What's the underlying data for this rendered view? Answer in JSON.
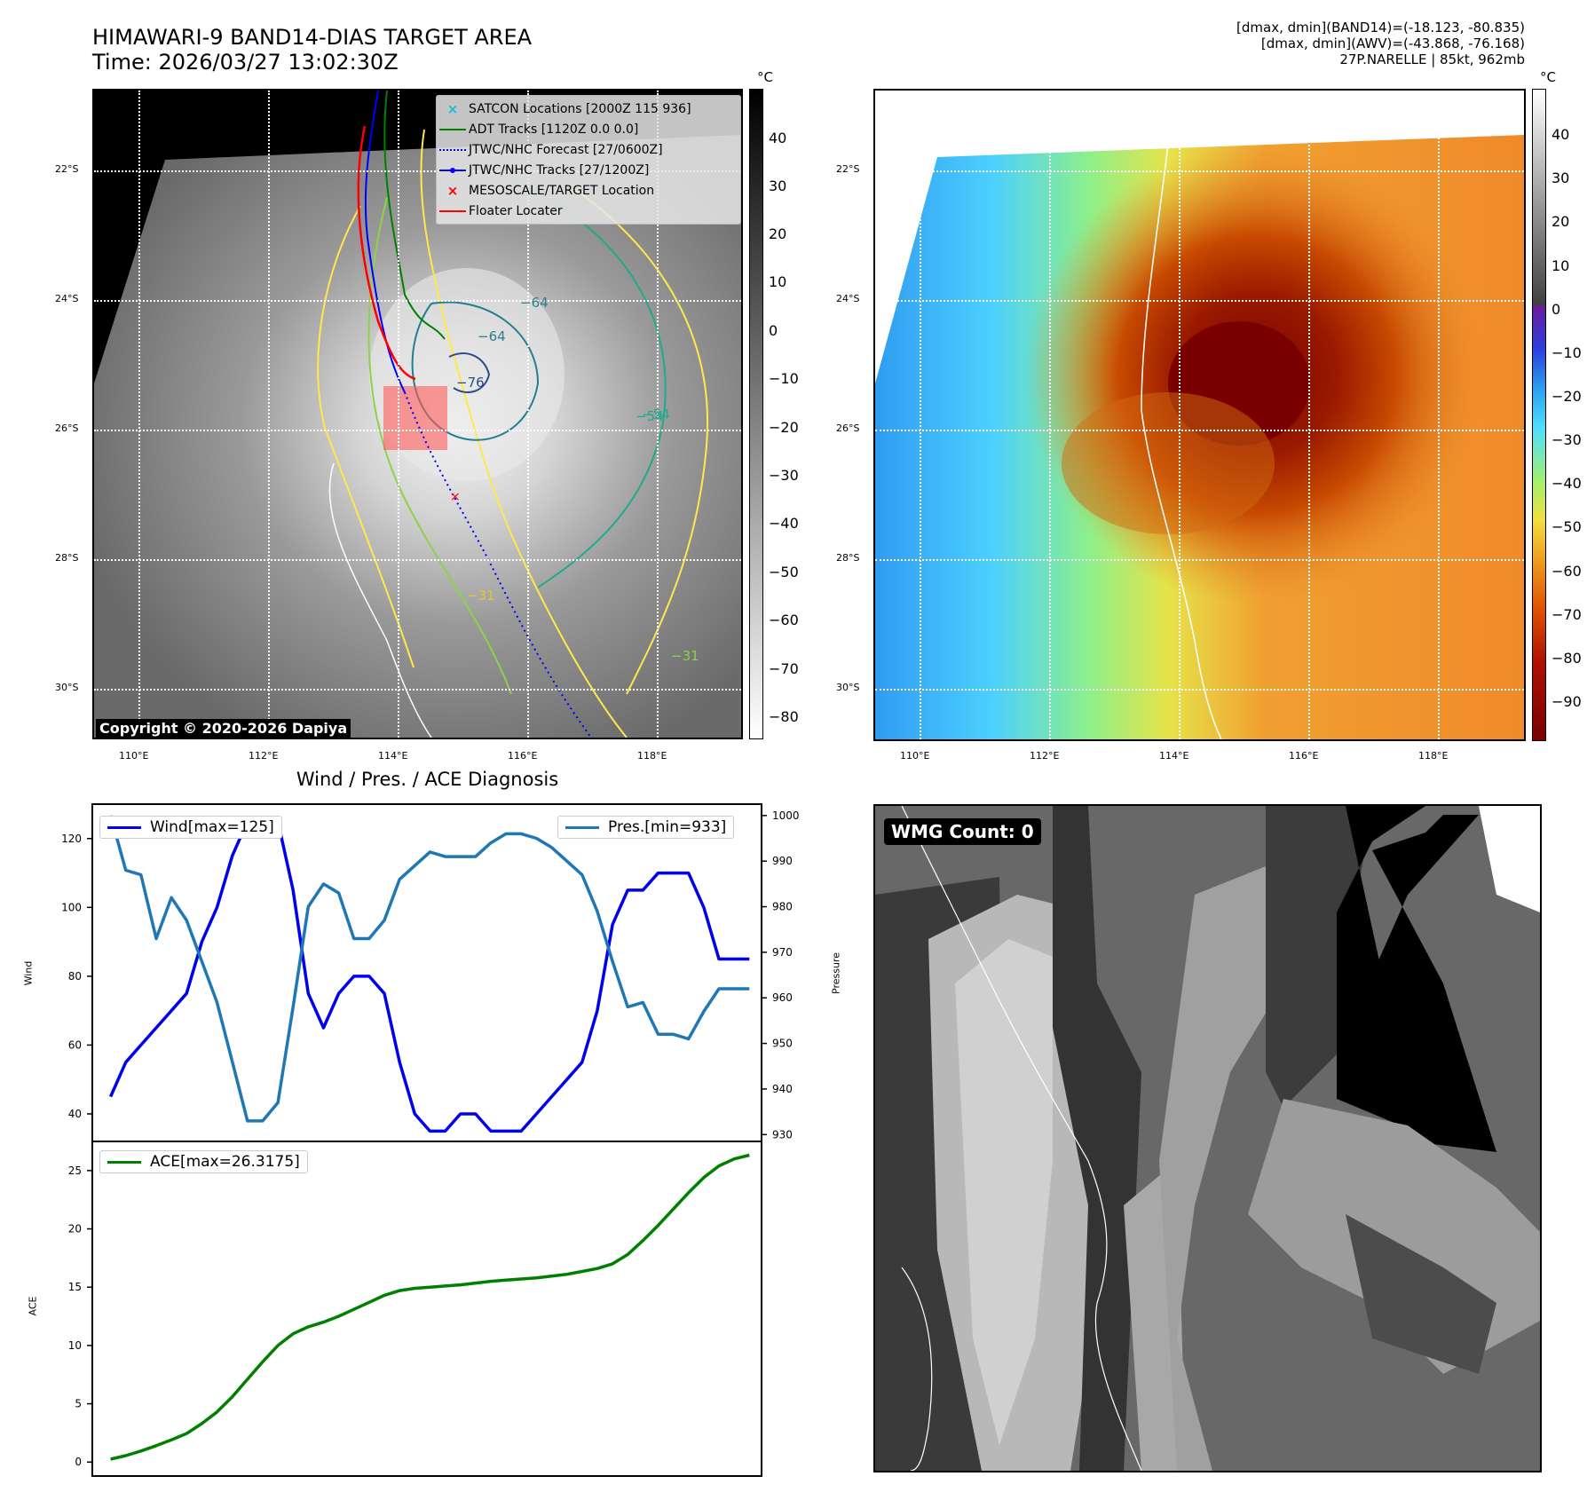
{
  "top_left": {
    "title_line1": "HIMAWARI-9 BAND14-DIAS TARGET AREA",
    "title_line2": "Time: 2026/03/27 13:02:30Z",
    "copyright": "Copyright © 2020-2026 Dapiya",
    "unit": "°C",
    "lat_ticks": [
      "22°S",
      "24°S",
      "26°S",
      "28°S",
      "30°S"
    ],
    "lon_ticks": [
      "110°E",
      "112°E",
      "114°E",
      "116°E",
      "118°E"
    ],
    "colorbar_ticks": [
      "40",
      "30",
      "20",
      "10",
      "0",
      "−10",
      "−20",
      "−30",
      "−40",
      "−50",
      "−60",
      "−70",
      "−80"
    ],
    "contour_labels": [
      "−64",
      "−64",
      "−76",
      "−54",
      "−31",
      "−31",
      "−54"
    ],
    "legend": [
      {
        "label": "SATCON Locations [2000Z 115 936]",
        "color": "#17becf",
        "kind": "x"
      },
      {
        "label": "ADT Tracks [1120Z 0.0 0.0]",
        "color": "#008000",
        "kind": "line"
      },
      {
        "label": "JTWC/NHC Forecast [27/0600Z]",
        "color": "#0000ff",
        "kind": "dotted"
      },
      {
        "label": "JTWC/NHC Tracks [27/1200Z]",
        "color": "#0000ff",
        "kind": "dotline"
      },
      {
        "label": "MESOSCALE/TARGET Location",
        "color": "#ff0000",
        "kind": "x"
      },
      {
        "label": "Floater Locater",
        "color": "#ff0000",
        "kind": "line"
      }
    ]
  },
  "top_right": {
    "info_line1": "[dmax, dmin](BAND14)=(-18.123, -80.835)",
    "info_line2": "[dmax, dmin](AWV)=(-43.868, -76.168)",
    "info_line3": "27P.NARELLE | 85kt, 962mb",
    "unit": "°C",
    "lat_ticks": [
      "22°S",
      "24°S",
      "26°S",
      "28°S",
      "30°S"
    ],
    "lon_ticks": [
      "110°E",
      "112°E",
      "114°E",
      "116°E",
      "118°E"
    ],
    "colorbar_ticks": [
      "40",
      "30",
      "20",
      "10",
      "0",
      "−10",
      "−20",
      "−30",
      "−40",
      "−50",
      "−60",
      "−70",
      "−80",
      "−90"
    ]
  },
  "bottom_left": {
    "title": "Wind / Pres. / ACE Diagnosis"
  },
  "bottom_right": {
    "badge": "WMG Count: 0"
  },
  "colors": {
    "wind": "#0000ee",
    "pressure": "#1f77b4",
    "ace": "#008000"
  },
  "chart_data": [
    {
      "type": "line",
      "title": "Wind / Pres. / ACE Diagnosis",
      "x": [
        0,
        1,
        2,
        3,
        4,
        5,
        6,
        7,
        8,
        9,
        10,
        11,
        12,
        13,
        14,
        15,
        16,
        17,
        18,
        19,
        20,
        21,
        22,
        23,
        24,
        25,
        26,
        27,
        28,
        29,
        30,
        31,
        32,
        33,
        34,
        35,
        36,
        37,
        38,
        39,
        40,
        41,
        42
      ],
      "ylabel": "Wind",
      "ylim": [
        32,
        130
      ],
      "yticks": [
        40,
        60,
        80,
        100,
        120
      ],
      "y2label": "Pressure",
      "y2lim": [
        928.5,
        1002.5
      ],
      "y2ticks": [
        930,
        940,
        950,
        960,
        970,
        980,
        990,
        1000
      ],
      "series": [
        {
          "name": "Wind",
          "legend": "Wind[max=125]",
          "axis": "left",
          "values": [
            45,
            55,
            60,
            65,
            70,
            75,
            90,
            100,
            115,
            125,
            125,
            125,
            105,
            75,
            65,
            75,
            80,
            80,
            75,
            55,
            40,
            35,
            35,
            40,
            40,
            35,
            35,
            35,
            40,
            45,
            50,
            55,
            70,
            95,
            105,
            105,
            110,
            110,
            110,
            100,
            85,
            85,
            85
          ]
        },
        {
          "name": "Pressure",
          "legend": "Pres.[min=933]",
          "axis": "right",
          "values": [
            1000,
            988,
            987,
            973,
            982,
            977,
            968,
            959,
            946,
            933,
            933,
            937,
            958,
            980,
            985,
            983,
            973,
            973,
            977,
            986,
            989,
            992,
            991,
            991,
            991,
            994,
            996,
            996,
            995,
            993,
            990,
            987,
            979,
            968,
            958,
            959,
            952,
            952,
            951,
            957,
            962,
            962,
            962
          ]
        }
      ]
    },
    {
      "type": "line",
      "x": [
        0,
        1,
        2,
        3,
        4,
        5,
        6,
        7,
        8,
        9,
        10,
        11,
        12,
        13,
        14,
        15,
        16,
        17,
        18,
        19,
        20,
        21,
        22,
        23,
        24,
        25,
        26,
        27,
        28,
        29,
        30,
        31,
        32,
        33,
        34,
        35,
        36,
        37,
        38,
        39,
        40,
        41,
        42
      ],
      "ylabel": "ACE",
      "ylim": [
        -1.2,
        27.5
      ],
      "yticks": [
        0,
        5,
        10,
        15,
        20,
        25
      ],
      "series": [
        {
          "name": "ACE",
          "legend": "ACE[max=26.3175]",
          "values": [
            0.25,
            0.55,
            0.95,
            1.4,
            1.9,
            2.45,
            3.3,
            4.3,
            5.6,
            7.1,
            8.6,
            10.0,
            11.0,
            11.6,
            12.0,
            12.5,
            13.1,
            13.7,
            14.3,
            14.7,
            14.9,
            15.0,
            15.1,
            15.2,
            15.35,
            15.5,
            15.6,
            15.7,
            15.8,
            15.95,
            16.1,
            16.35,
            16.6,
            17.0,
            17.8,
            19.0,
            20.3,
            21.7,
            23.1,
            24.4,
            25.4,
            26.0,
            26.3175
          ]
        }
      ]
    }
  ]
}
